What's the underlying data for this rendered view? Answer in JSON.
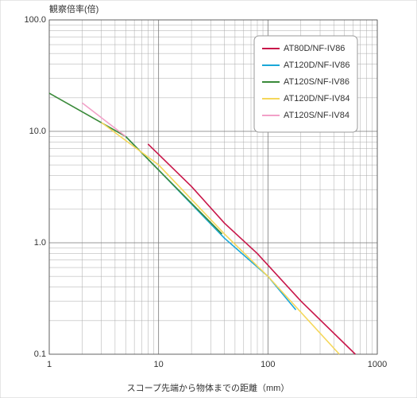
{
  "chart_data": {
    "type": "line",
    "title": "観察倍率(倍)",
    "x_label": "スコープ先端から物体までの距離（mm）",
    "log_x": true,
    "log_y": true,
    "grid": true,
    "minor_grid": true,
    "legend": "upper right",
    "xlim": [
      1,
      1000
    ],
    "ylim": [
      0.1,
      100
    ],
    "xticks": [
      1,
      10,
      100,
      1000
    ],
    "yticks": [
      {
        "value": 100,
        "label": "100.0"
      },
      {
        "value": 10,
        "label": "10.0"
      },
      {
        "value": 1,
        "label": "1.0"
      },
      {
        "value": 0.1,
        "label": "0.1"
      }
    ],
    "series": [
      {
        "name": "AT80D/NF-IV86",
        "color": "#c8174a",
        "x": [
          8,
          20,
          40,
          80,
          200,
          630
        ],
        "values": [
          7.7,
          3.2,
          1.5,
          0.8,
          0.3,
          0.1
        ]
      },
      {
        "name": "AT120D/NF-IV86",
        "color": "#1aa7d8",
        "x": [
          5,
          10,
          40,
          100,
          180
        ],
        "values": [
          9,
          4.5,
          1.1,
          0.5,
          0.25
        ]
      },
      {
        "name": "AT120S/NF-IV86",
        "color": "#3a8a3a",
        "x": [
          1,
          5,
          10,
          38
        ],
        "values": [
          22,
          9,
          4.5,
          1.2
        ]
      },
      {
        "name": "AT120D/NF-IV84",
        "color": "#f5d75a",
        "x": [
          3,
          10,
          40,
          100,
          450
        ],
        "values": [
          12,
          5,
          1.2,
          0.5,
          0.1
        ]
      },
      {
        "name": "AT120S/NF-IV84",
        "color": "#f2a0c8",
        "x": [
          2,
          5
        ],
        "values": [
          18,
          9
        ]
      }
    ]
  }
}
